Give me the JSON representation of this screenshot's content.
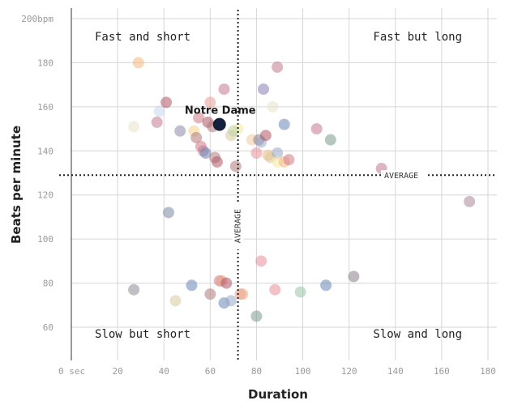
{
  "chart_data": {
    "type": "scatter",
    "xlabel": "Duration",
    "ylabel": "Beats per minute",
    "xlim": [
      -5,
      185
    ],
    "ylim": [
      45,
      205
    ],
    "x_ticks": [
      {
        "value": 0,
        "label": "0 sec"
      },
      {
        "value": 20,
        "label": "20"
      },
      {
        "value": 40,
        "label": "40"
      },
      {
        "value": 60,
        "label": "60"
      },
      {
        "value": 80,
        "label": "80"
      },
      {
        "value": 100,
        "label": "100"
      },
      {
        "value": 120,
        "label": "120"
      },
      {
        "value": 140,
        "label": "140"
      },
      {
        "value": 160,
        "label": "160"
      },
      {
        "value": 180,
        "label": "180"
      }
    ],
    "y_ticks": [
      {
        "value": 200,
        "label": "200bpm"
      },
      {
        "value": 180,
        "label": "180"
      },
      {
        "value": 160,
        "label": "160"
      },
      {
        "value": 140,
        "label": "140"
      },
      {
        "value": 120,
        "label": "120"
      },
      {
        "value": 100,
        "label": "100"
      },
      {
        "value": 80,
        "label": "80"
      },
      {
        "value": 60,
        "label": "60"
      }
    ],
    "grid": true,
    "averages": {
      "x": 72,
      "y": 129,
      "label": "AVERAGE"
    },
    "quadrants": {
      "top_left": "Fast and short",
      "top_right": "Fast but long",
      "bottom_left": "Slow but short",
      "bottom_right": "Slow and long"
    },
    "highlight": {
      "label": "Notre Dame",
      "x": 64,
      "y": 152,
      "color": "#14213d"
    },
    "points": [
      {
        "x": 29,
        "y": 180,
        "color": "#f2b880"
      },
      {
        "x": 89,
        "y": 178,
        "color": "#c27a8e"
      },
      {
        "x": 66,
        "y": 168,
        "color": "#c27a8e"
      },
      {
        "x": 83,
        "y": 168,
        "color": "#8a7eb0"
      },
      {
        "x": 41,
        "y": 162,
        "color": "#b05566"
      },
      {
        "x": 60,
        "y": 162,
        "color": "#e89e96"
      },
      {
        "x": 38,
        "y": 158,
        "color": "#c8d6ef"
      },
      {
        "x": 87,
        "y": 160,
        "color": "#eae3c9"
      },
      {
        "x": 27,
        "y": 151,
        "color": "#eae3c9"
      },
      {
        "x": 37,
        "y": 153,
        "color": "#c27a8e"
      },
      {
        "x": 47,
        "y": 149,
        "color": "#8a8aa8"
      },
      {
        "x": 55,
        "y": 155,
        "color": "#d27a86"
      },
      {
        "x": 59,
        "y": 153,
        "color": "#b05566"
      },
      {
        "x": 61,
        "y": 151,
        "color": "#b07a7a"
      },
      {
        "x": 53,
        "y": 149,
        "color": "#f2d28a"
      },
      {
        "x": 54,
        "y": 146,
        "color": "#b07a7a"
      },
      {
        "x": 72,
        "y": 150,
        "color": "#f6e8a0"
      },
      {
        "x": 69,
        "y": 147,
        "color": "#d9c9a0"
      },
      {
        "x": 70,
        "y": 149,
        "color": "#bcd6a8"
      },
      {
        "x": 78,
        "y": 145,
        "color": "#f2c8a0"
      },
      {
        "x": 81,
        "y": 145,
        "color": "#8a7e8a"
      },
      {
        "x": 82,
        "y": 144,
        "color": "#9aa8c8"
      },
      {
        "x": 84,
        "y": 147,
        "color": "#b05566"
      },
      {
        "x": 92,
        "y": 152,
        "color": "#6a86b8"
      },
      {
        "x": 106,
        "y": 150,
        "color": "#c27a8e"
      },
      {
        "x": 112,
        "y": 145,
        "color": "#7a9a8a"
      },
      {
        "x": 56,
        "y": 142,
        "color": "#d27a86"
      },
      {
        "x": 57,
        "y": 140,
        "color": "#c27a8e"
      },
      {
        "x": 58,
        "y": 139,
        "color": "#6a86b8"
      },
      {
        "x": 62,
        "y": 137,
        "color": "#b07a7a"
      },
      {
        "x": 63,
        "y": 135,
        "color": "#b05566"
      },
      {
        "x": 80,
        "y": 139,
        "color": "#e8909a"
      },
      {
        "x": 85,
        "y": 138,
        "color": "#f2b880"
      },
      {
        "x": 86,
        "y": 137,
        "color": "#d9c9a0"
      },
      {
        "x": 89,
        "y": 139,
        "color": "#9aa8c8"
      },
      {
        "x": 89,
        "y": 135,
        "color": "#f6e8a0"
      },
      {
        "x": 92,
        "y": 135,
        "color": "#f2b880"
      },
      {
        "x": 94,
        "y": 136,
        "color": "#d27a86"
      },
      {
        "x": 71,
        "y": 133,
        "color": "#b07a7a"
      },
      {
        "x": 134,
        "y": 132,
        "color": "#c27a8e"
      },
      {
        "x": 172,
        "y": 117,
        "color": "#a8889a"
      },
      {
        "x": 42,
        "y": 112,
        "color": "#7a86a0"
      },
      {
        "x": 82,
        "y": 90,
        "color": "#e8909a"
      },
      {
        "x": 122,
        "y": 83,
        "color": "#8a7e8a"
      },
      {
        "x": 64,
        "y": 81,
        "color": "#d27a86"
      },
      {
        "x": 65,
        "y": 81,
        "color": "#e8a080"
      },
      {
        "x": 67,
        "y": 80,
        "color": "#b05566"
      },
      {
        "x": 52,
        "y": 79,
        "color": "#6a86b8"
      },
      {
        "x": 110,
        "y": 79,
        "color": "#6a86b8"
      },
      {
        "x": 27,
        "y": 77,
        "color": "#8a8a96"
      },
      {
        "x": 88,
        "y": 77,
        "color": "#e8909a"
      },
      {
        "x": 99,
        "y": 76,
        "color": "#9ac4a8"
      },
      {
        "x": 60,
        "y": 75,
        "color": "#b07a7a"
      },
      {
        "x": 73,
        "y": 75,
        "color": "#e89e96"
      },
      {
        "x": 74,
        "y": 75,
        "color": "#f2a880"
      },
      {
        "x": 45,
        "y": 72,
        "color": "#d9c9a0"
      },
      {
        "x": 66,
        "y": 71,
        "color": "#6a86b8"
      },
      {
        "x": 69,
        "y": 72,
        "color": "#9aa8c8"
      },
      {
        "x": 80,
        "y": 65,
        "color": "#7a9a8a"
      }
    ]
  }
}
